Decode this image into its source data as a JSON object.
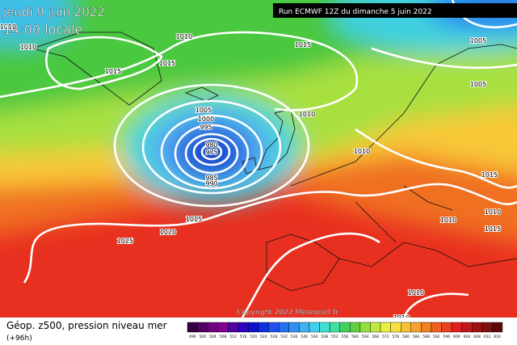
{
  "header": {
    "date": "jeudi 9 juin 2022",
    "time": "14:00 locale",
    "run": "Run ECMWF 12Z du dimanche 5 juin 2022",
    "copyright": "Copyright 2022 Meteociel.fr"
  },
  "legend": {
    "title": "Géop. z500, pression niveau mer",
    "lead": "(+96h)",
    "labels": [
      "496",
      "500",
      "504",
      "508",
      "512",
      "516",
      "520",
      "524",
      "528",
      "532",
      "536",
      "540",
      "544",
      "548",
      "552",
      "556",
      "560",
      "564",
      "568",
      "572",
      "576",
      "580",
      "584",
      "588",
      "592",
      "596",
      "600",
      "604",
      "608",
      "612",
      "616"
    ],
    "colors": [
      "#300040",
      "#500060",
      "#700080",
      "#800090",
      "#5000a0",
      "#3000c0",
      "#1010d0",
      "#1030e0",
      "#2050f0",
      "#2070f0",
      "#3090f0",
      "#40b0f0",
      "#40d0f0",
      "#40e0d0",
      "#40e0a0",
      "#40d060",
      "#60d040",
      "#90e040",
      "#c0e840",
      "#e8f040",
      "#f8e040",
      "#f8c030",
      "#f8a030",
      "#f08020",
      "#f06020",
      "#e84020",
      "#e02020",
      "#c01818",
      "#a01010",
      "#801010",
      "#600808"
    ]
  },
  "isobars": [
    "1010",
    "1010",
    "1015",
    "1010",
    "1015",
    "1015",
    "1005",
    "1000",
    "995",
    "1010",
    "980",
    "975",
    "985",
    "990",
    "1010",
    "1015",
    "1015",
    "1020",
    "1025",
    "1010",
    "1010",
    "1015",
    "1010",
    "1010",
    "1005",
    "1005"
  ]
}
